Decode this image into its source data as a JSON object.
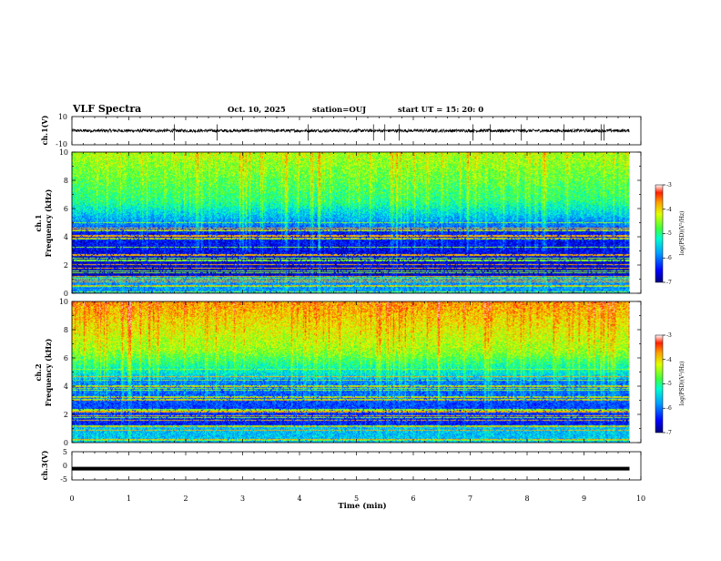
{
  "header": {
    "title": "VLF Spectra",
    "date": "Oct. 10, 2025",
    "station": "station=OUJ",
    "start_ut": "start  UT =   15: 20: 0"
  },
  "chart_data": [
    {
      "type": "line",
      "panel": "ch1-waveform",
      "ylabel": "ch.1(V)",
      "ylim": [
        -10,
        10
      ],
      "y_ticks": [
        "10",
        "-10"
      ],
      "baseline_v": 0,
      "spike_times_min": [
        1.8,
        2.55,
        4.15,
        5.3,
        5.5,
        5.75,
        7.05,
        7.35,
        7.9,
        8.65,
        9.3,
        9.35
      ]
    },
    {
      "type": "heatmap",
      "panel": "ch1-spectrogram",
      "ylabel_channel": "ch.1",
      "ylabel": "Frequency (kHz)",
      "ylim": [
        0,
        10
      ],
      "y_ticks": [
        "0",
        "2",
        "4",
        "6",
        "8",
        "10"
      ],
      "colorbar": {
        "label": "log(PSD)(V²/Hz)",
        "min": -7,
        "max": -3,
        "ticks": [
          "-3",
          "-4",
          "-5",
          "-6",
          "-7"
        ]
      }
    },
    {
      "type": "heatmap",
      "panel": "ch2-spectrogram",
      "ylabel_channel": "ch.2",
      "ylabel": "Frequency (kHz)",
      "ylim": [
        0,
        10
      ],
      "y_ticks": [
        "0",
        "2",
        "4",
        "6",
        "8",
        "10"
      ],
      "colorbar": {
        "label": "log(PSD)(V²/Hz)",
        "min": -7,
        "max": -3,
        "ticks": [
          "-3",
          "-4",
          "-5",
          "-6",
          "-7"
        ]
      }
    },
    {
      "type": "line",
      "panel": "ch3-waveform",
      "ylabel": "ch.3(V)",
      "ylim": [
        -5,
        5
      ],
      "y_ticks": [
        "5",
        "0",
        "-5"
      ],
      "constant_v": -1.0
    }
  ],
  "x_axis": {
    "label": "Time (min)",
    "range": [
      0,
      10
    ],
    "data_end_min": 9.8,
    "ticks": [
      "0",
      "1",
      "2",
      "3",
      "4",
      "5",
      "6",
      "7",
      "8",
      "9",
      "10"
    ]
  },
  "colors": {
    "spectro_low": "#000080",
    "spectro_mid": "#00ff80",
    "spectro_high": "#ff0000",
    "trace": "#000000"
  }
}
